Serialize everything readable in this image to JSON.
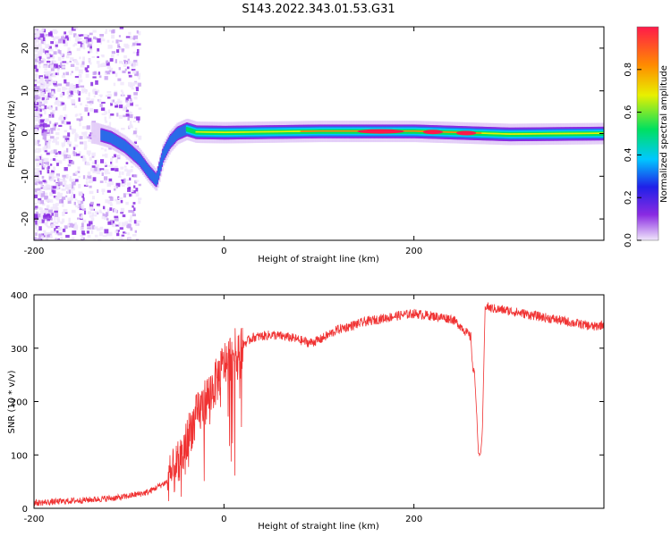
{
  "title": "S143.2022.343.01.53.G31",
  "chart_data": [
    {
      "type": "heatmap",
      "xlabel": "Height of straight line (km)",
      "ylabel": "Frequency (Hz)",
      "xlim": [
        -200,
        400
      ],
      "ylim": [
        -25,
        25
      ],
      "xticks": [
        -200,
        0,
        200
      ],
      "yticks": [
        -20,
        -10,
        0,
        10,
        20
      ],
      "colorbar": {
        "label": "Normalized spectral amplitude",
        "range": [
          0,
          1
        ],
        "ticks": [
          0.0,
          0.2,
          0.4,
          0.6,
          0.8
        ],
        "colors": [
          "#f0e6fb",
          "#8a2be2",
          "#2020e8",
          "#00c8ff",
          "#00e060",
          "#e8f000",
          "#ff8c00",
          "#ff1a4a"
        ]
      },
      "ridge": [
        {
          "x": -150,
          "f": 0.5
        },
        {
          "x": -135,
          "f": 0
        },
        {
          "x": -120,
          "f": -1
        },
        {
          "x": -105,
          "f": -3
        },
        {
          "x": -90,
          "f": -6
        },
        {
          "x": -80,
          "f": -9
        },
        {
          "x": -72,
          "f": -11
        },
        {
          "x": -65,
          "f": -5
        },
        {
          "x": -58,
          "f": -2
        },
        {
          "x": -50,
          "f": 0
        },
        {
          "x": -40,
          "f": 1
        },
        {
          "x": -30,
          "f": 0.3
        },
        {
          "x": 0,
          "f": 0.2
        },
        {
          "x": 100,
          "f": 0.5
        },
        {
          "x": 200,
          "f": 0.5
        },
        {
          "x": 300,
          "f": -0.2
        },
        {
          "x": 400,
          "f": 0
        }
      ],
      "hotspots_x": [
        165,
        220,
        255
      ]
    },
    {
      "type": "line",
      "xlabel": "Height of straight line (km)",
      "ylabel": "SNR (10 * v/v)",
      "xlim": [
        -200,
        400
      ],
      "ylim": [
        0,
        400
      ],
      "xticks": [
        -200,
        0,
        200
      ],
      "yticks": [
        0,
        100,
        200,
        300,
        400
      ],
      "color": "#f03232",
      "series": [
        {
          "x": [
            -200,
            -150,
            -110,
            -80,
            -60,
            -45,
            -35,
            -20,
            -10,
            0,
            15,
            30,
            50,
            70,
            90,
            100,
            120,
            150,
            180,
            200,
            220,
            240,
            250,
            260,
            262,
            264,
            266,
            268,
            270,
            272,
            275,
            280,
            300,
            330,
            360,
            390,
            400
          ],
          "values": [
            10,
            15,
            20,
            30,
            50,
            90,
            150,
            200,
            230,
            270,
            300,
            320,
            325,
            320,
            310,
            315,
            335,
            350,
            360,
            365,
            360,
            355,
            340,
            320,
            260,
            250,
            180,
            100,
            100,
            140,
            380,
            375,
            370,
            360,
            350,
            340,
            345
          ]
        }
      ]
    }
  ]
}
